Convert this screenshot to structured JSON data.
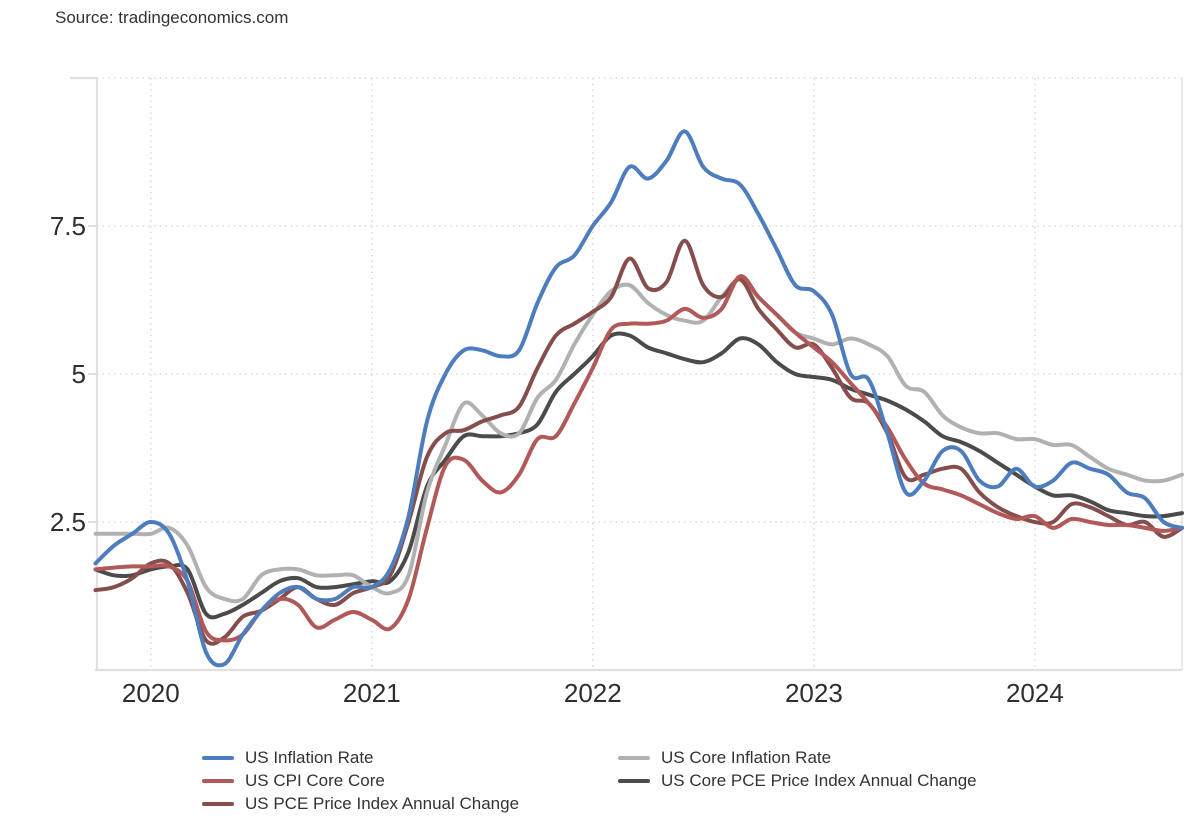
{
  "source": {
    "label": "Source: tradingeconomics.com"
  },
  "chart_data": {
    "type": "line",
    "title": "",
    "x_frequency": "monthly",
    "x_start": "2019-10",
    "x_end": "2024-09",
    "x_tick_labels": [
      "2020",
      "2021",
      "2022",
      "2023",
      "2024"
    ],
    "y_tick_labels": [
      "7.5",
      "5",
      "2.5"
    ],
    "y_gridline_values": [
      10,
      7.5,
      5,
      2.5
    ],
    "ylim": [
      0,
      10
    ],
    "grid": "dotted",
    "legend_position": "bottom",
    "series": [
      {
        "name": "US Inflation Rate",
        "color": "#4e7dbe",
        "values": [
          1.8,
          2.1,
          2.3,
          2.5,
          2.3,
          1.5,
          0.3,
          0.1,
          0.6,
          1.0,
          1.3,
          1.4,
          1.2,
          1.2,
          1.4,
          1.4,
          1.7,
          2.6,
          4.2,
          5.0,
          5.4,
          5.4,
          5.3,
          5.4,
          6.2,
          6.8,
          7.0,
          7.5,
          7.9,
          8.5,
          8.3,
          8.6,
          9.1,
          8.5,
          8.3,
          8.2,
          7.7,
          7.1,
          6.5,
          6.4,
          6.0,
          5.0,
          4.9,
          4.0,
          3.0,
          3.2,
          3.7,
          3.7,
          3.2,
          3.1,
          3.4,
          3.1,
          3.2,
          3.5,
          3.4,
          3.3,
          3.0,
          2.9,
          2.5,
          2.4
        ]
      },
      {
        "name": "US CPI Core Core",
        "color": "#b25858",
        "values": [
          1.7,
          1.73,
          1.75,
          1.75,
          1.75,
          1.5,
          0.65,
          0.5,
          0.6,
          1.0,
          1.2,
          1.1,
          0.72,
          0.85,
          0.98,
          0.85,
          0.7,
          1.2,
          2.4,
          3.45,
          3.55,
          3.2,
          3.0,
          3.3,
          3.9,
          3.95,
          4.5,
          5.1,
          5.75,
          5.85,
          5.85,
          5.9,
          6.1,
          5.95,
          6.1,
          6.65,
          6.3,
          6.0,
          5.7,
          5.45,
          5.2,
          4.85,
          4.5,
          4.1,
          3.55,
          3.15,
          3.05,
          2.95,
          2.8,
          2.65,
          2.55,
          2.6,
          2.4,
          2.55,
          2.5,
          2.45,
          2.45,
          2.4,
          2.35,
          2.4
        ]
      },
      {
        "name": "US PCE Price Index Annual Change",
        "color": "#854e4c",
        "values": [
          1.35,
          1.4,
          1.55,
          1.8,
          1.8,
          1.3,
          0.5,
          0.55,
          0.9,
          1.0,
          1.2,
          1.4,
          1.2,
          1.1,
          1.3,
          1.4,
          1.6,
          2.5,
          3.6,
          4.0,
          4.05,
          4.2,
          4.3,
          4.45,
          5.1,
          5.65,
          5.85,
          6.05,
          6.3,
          6.95,
          6.45,
          6.55,
          7.25,
          6.5,
          6.3,
          6.6,
          6.1,
          5.75,
          5.45,
          5.5,
          5.1,
          4.6,
          4.5,
          4.0,
          3.25,
          3.3,
          3.4,
          3.4,
          3.0,
          2.75,
          2.6,
          2.5,
          2.5,
          2.8,
          2.75,
          2.6,
          2.45,
          2.5,
          2.25,
          2.4
        ]
      },
      {
        "name": "US Core Inflation Rate",
        "color": "#b1b1b1",
        "values": [
          2.3,
          2.3,
          2.3,
          2.3,
          2.4,
          2.1,
          1.4,
          1.2,
          1.2,
          1.6,
          1.7,
          1.7,
          1.6,
          1.6,
          1.6,
          1.4,
          1.3,
          1.6,
          3.0,
          3.8,
          4.5,
          4.3,
          4.0,
          4.0,
          4.6,
          4.9,
          5.5,
          6.0,
          6.4,
          6.5,
          6.2,
          6.0,
          5.9,
          5.9,
          6.3,
          6.6,
          6.3,
          6.0,
          5.7,
          5.6,
          5.5,
          5.6,
          5.5,
          5.3,
          4.8,
          4.7,
          4.3,
          4.1,
          4.0,
          4.0,
          3.9,
          3.9,
          3.8,
          3.8,
          3.6,
          3.4,
          3.3,
          3.2,
          3.2,
          3.3
        ]
      },
      {
        "name": "US Core PCE Price Index Annual Change",
        "color": "#4b4b4b",
        "values": [
          1.7,
          1.6,
          1.6,
          1.7,
          1.75,
          1.7,
          0.95,
          0.95,
          1.1,
          1.3,
          1.5,
          1.55,
          1.4,
          1.4,
          1.45,
          1.5,
          1.5,
          2.0,
          3.1,
          3.55,
          3.95,
          3.95,
          3.95,
          4.0,
          4.15,
          4.7,
          5.0,
          5.3,
          5.65,
          5.65,
          5.45,
          5.35,
          5.25,
          5.2,
          5.35,
          5.6,
          5.5,
          5.2,
          5.0,
          4.95,
          4.9,
          4.75,
          4.65,
          4.55,
          4.4,
          4.2,
          3.95,
          3.85,
          3.7,
          3.5,
          3.3,
          3.1,
          2.95,
          2.95,
          2.85,
          2.7,
          2.65,
          2.6,
          2.6,
          2.65
        ]
      }
    ]
  }
}
